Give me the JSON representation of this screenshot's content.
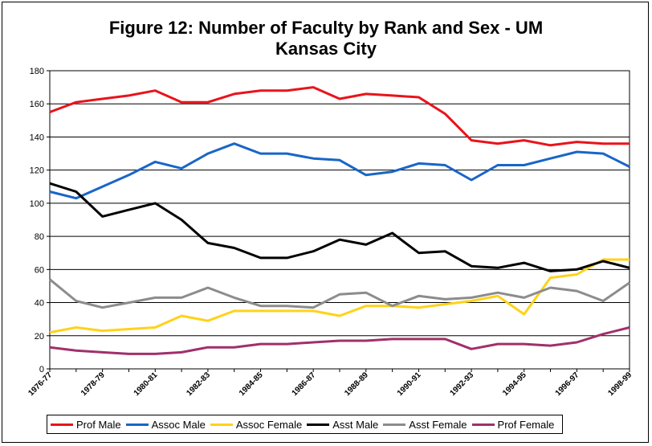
{
  "chart_data": {
    "type": "line",
    "title": "Figure 12: Number of Faculty by Rank and Sex - UM\nKansas City",
    "xlabel": "",
    "ylabel": "",
    "ylim": [
      0,
      180
    ],
    "yticks": [
      0,
      20,
      40,
      60,
      80,
      100,
      120,
      140,
      160,
      180
    ],
    "grid": true,
    "legend_position": "bottom",
    "categories": [
      "1976-77",
      "1977-78",
      "1978-79",
      "1979-80",
      "1980-81",
      "1981-82",
      "1982-83",
      "1983-84",
      "1984-85",
      "1985-86",
      "1986-87",
      "1987-88",
      "1988-89",
      "1989-90",
      "1990-91",
      "1991-92",
      "1992-93",
      "1993-94",
      "1994-95",
      "1995-96",
      "1996-97",
      "1997-98",
      "1998-99"
    ],
    "tick_labels": [
      "1976-77",
      "",
      "1978-79",
      "",
      "1980-81",
      "",
      "1982-83",
      "",
      "1984-85",
      "",
      "1986-87",
      "",
      "1988-89",
      "",
      "1990-91",
      "",
      "1992-93",
      "",
      "1994-95",
      "",
      "1996-97",
      "",
      "1998-99"
    ],
    "series": [
      {
        "name": "Prof Male",
        "color": "#e8141b",
        "values": [
          155,
          161,
          163,
          165,
          168,
          161,
          161,
          166,
          168,
          168,
          170,
          163,
          166,
          165,
          164,
          154,
          138,
          136,
          138,
          135,
          137,
          136,
          136
        ]
      },
      {
        "name": "Assoc Male",
        "color": "#1866c7",
        "values": [
          107,
          103,
          110,
          117,
          125,
          121,
          130,
          136,
          130,
          130,
          127,
          126,
          117,
          119,
          124,
          123,
          114,
          123,
          123,
          127,
          131,
          130,
          122
        ]
      },
      {
        "name": "Assoc Female",
        "color": "#ffd21a",
        "values": [
          22,
          25,
          23,
          24,
          25,
          32,
          29,
          35,
          35,
          35,
          35,
          32,
          38,
          38,
          37,
          39,
          41,
          44,
          33,
          55,
          57,
          66,
          66
        ]
      },
      {
        "name": "Asst Male",
        "color": "#000000",
        "values": [
          112,
          107,
          92,
          96,
          100,
          90,
          76,
          73,
          67,
          67,
          71,
          78,
          75,
          82,
          70,
          71,
          62,
          61,
          64,
          59,
          60,
          65,
          61
        ]
      },
      {
        "name": "Asst Female",
        "color": "#8c8c8c",
        "values": [
          54,
          41,
          37,
          40,
          43,
          43,
          49,
          43,
          38,
          38,
          37,
          45,
          46,
          38,
          44,
          42,
          43,
          46,
          43,
          49,
          47,
          41,
          52
        ]
      },
      {
        "name": "Prof Female",
        "color": "#a0306a",
        "values": [
          13,
          11,
          10,
          9,
          9,
          10,
          13,
          13,
          15,
          15,
          16,
          17,
          17,
          18,
          18,
          18,
          12,
          15,
          15,
          14,
          16,
          21,
          25
        ]
      }
    ]
  }
}
